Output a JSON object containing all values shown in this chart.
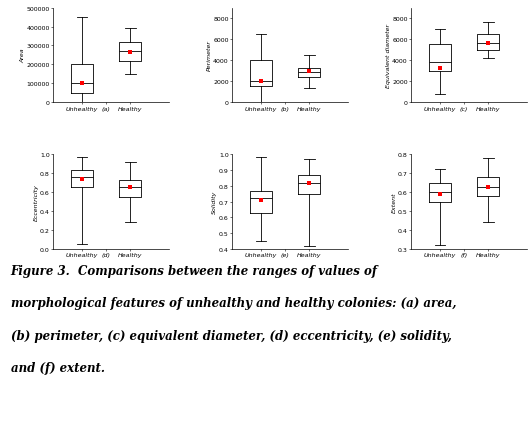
{
  "plots": [
    {
      "label": "(a)",
      "ylabel": "Area",
      "ylim": [
        0,
        500000
      ],
      "yticks": [
        0,
        100000,
        200000,
        300000,
        400000,
        500000
      ],
      "ytick_labels": [
        "0",
        "100000",
        "200000",
        "300000",
        "400000",
        "500000"
      ],
      "unhealthy": {
        "whislo": 0,
        "q1": 50000,
        "med": 100000,
        "q3": 200000,
        "whishi": 450000,
        "mean": 100000
      },
      "healthy": {
        "whislo": 150000,
        "q1": 220000,
        "med": 270000,
        "q3": 320000,
        "whishi": 390000,
        "mean": 265000
      }
    },
    {
      "label": "(b)",
      "ylabel": "Perimeter",
      "ylim": [
        0,
        9000
      ],
      "yticks": [
        0,
        2000,
        4000,
        6000,
        8000
      ],
      "ytick_labels": [
        "0",
        "2000",
        "4000",
        "6000",
        "8000"
      ],
      "unhealthy": {
        "whislo": 0,
        "q1": 1500,
        "med": 2000,
        "q3": 4000,
        "whishi": 6500,
        "mean": 2000
      },
      "healthy": {
        "whislo": 1400,
        "q1": 2400,
        "med": 2900,
        "q3": 3300,
        "whishi": 4500,
        "mean": 2950
      }
    },
    {
      "label": "(c)",
      "ylabel": "Equivalent diameter",
      "ylim": [
        0,
        9000
      ],
      "yticks": [
        0,
        2000,
        4000,
        6000,
        8000
      ],
      "ytick_labels": [
        "0",
        "2000",
        "4000",
        "6000",
        "8000"
      ],
      "unhealthy": {
        "whislo": 800,
        "q1": 3000,
        "med": 3800,
        "q3": 5500,
        "whishi": 7000,
        "mean": 3300
      },
      "healthy": {
        "whislo": 4200,
        "q1": 5000,
        "med": 5600,
        "q3": 6500,
        "whishi": 7600,
        "mean": 5600
      }
    },
    {
      "label": "(d)",
      "ylabel": "Eccentricity",
      "ylim": [
        0.0,
        1.0
      ],
      "yticks": [
        0.0,
        0.2,
        0.4,
        0.6,
        0.8,
        1.0
      ],
      "ytick_labels": [
        "0.0",
        "0.2",
        "0.4",
        "0.6",
        "0.8",
        "1.0"
      ],
      "unhealthy": {
        "whislo": 0.05,
        "q1": 0.65,
        "med": 0.76,
        "q3": 0.83,
        "whishi": 0.97,
        "mean": 0.74
      },
      "healthy": {
        "whislo": 0.28,
        "q1": 0.55,
        "med": 0.65,
        "q3": 0.73,
        "whishi": 0.92,
        "mean": 0.65
      }
    },
    {
      "label": "(e)",
      "ylabel": "Solidity",
      "ylim": [
        0.4,
        1.0
      ],
      "yticks": [
        0.4,
        0.5,
        0.6,
        0.7,
        0.8,
        0.9,
        1.0
      ],
      "ytick_labels": [
        "0.4",
        "0.5",
        "0.6",
        "0.7",
        "0.8",
        "0.9",
        "1.0"
      ],
      "unhealthy": {
        "whislo": 0.45,
        "q1": 0.63,
        "med": 0.72,
        "q3": 0.77,
        "whishi": 0.98,
        "mean": 0.71
      },
      "healthy": {
        "whislo": 0.42,
        "q1": 0.75,
        "med": 0.82,
        "q3": 0.87,
        "whishi": 0.97,
        "mean": 0.82
      }
    },
    {
      "label": "(f)",
      "ylabel": "Extent",
      "ylim": [
        0.3,
        0.8
      ],
      "yticks": [
        0.3,
        0.4,
        0.5,
        0.6,
        0.7,
        0.8
      ],
      "ytick_labels": [
        "0.3",
        "0.4",
        "0.5",
        "0.6",
        "0.7",
        "0.8"
      ],
      "unhealthy": {
        "whislo": 0.32,
        "q1": 0.55,
        "med": 0.6,
        "q3": 0.65,
        "whishi": 0.72,
        "mean": 0.59
      },
      "healthy": {
        "whislo": 0.44,
        "q1": 0.58,
        "med": 0.63,
        "q3": 0.68,
        "whishi": 0.78,
        "mean": 0.63
      }
    }
  ],
  "caption_lines": [
    "Figure 3.  Comparisons between the ranges of values of",
    "morphological features of unhealthy and healthy colonies: (a) area,",
    "(b) perimeter, (c) equivalent diameter, (d) eccentricity, (e) solidity,",
    "and (f) extent."
  ],
  "box_color": "black",
  "mean_color": "red",
  "mean_marker": "s",
  "mean_markersize": 2.5,
  "tick_fontsize": 4.5,
  "label_fontsize": 4.5,
  "subplot_label_fontsize": 5.5,
  "caption_fontsize": 8.5,
  "figsize": [
    5.32,
    4.31
  ],
  "dpi": 100
}
